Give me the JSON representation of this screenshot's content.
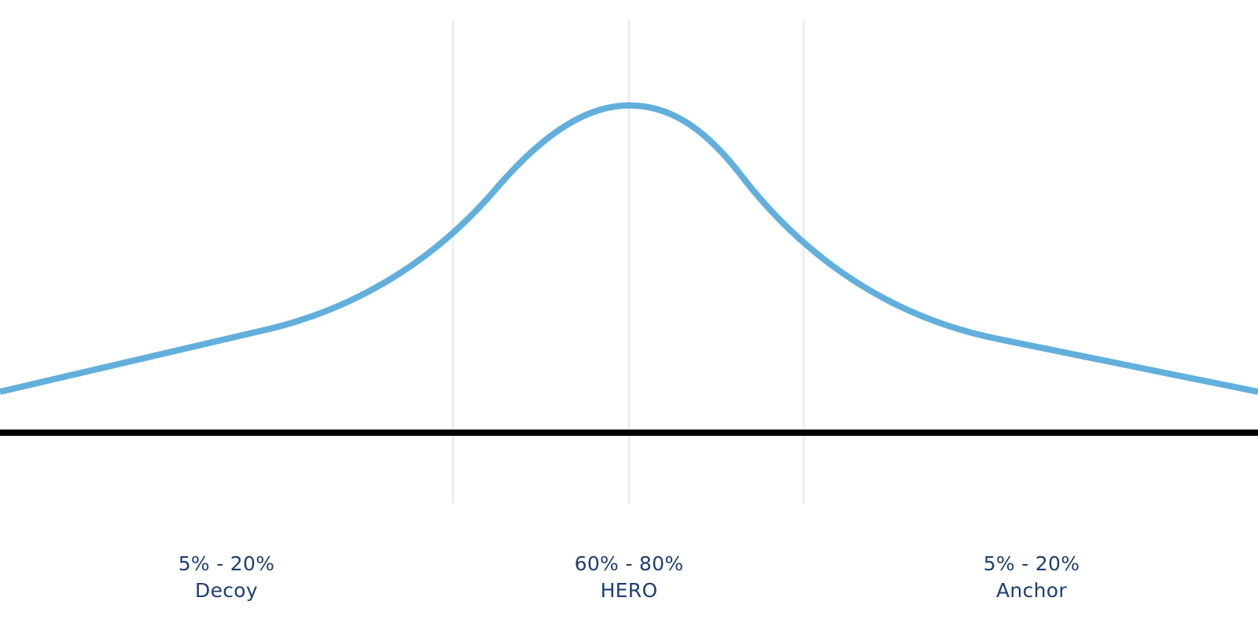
{
  "segments": [
    {
      "range": "5% - 20%",
      "name": "Decoy"
    },
    {
      "range": "60% - 80%",
      "name": "HERO"
    },
    {
      "range": "5% - 20%",
      "name": "Anchor"
    }
  ],
  "colors": {
    "curve": "#62afdc",
    "baseline": "#000000",
    "divider": "#ececec",
    "label": "#1f3f6e"
  }
}
